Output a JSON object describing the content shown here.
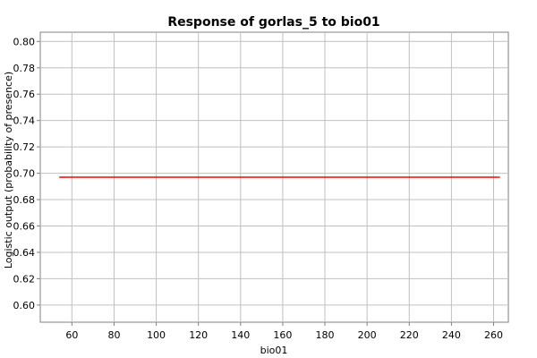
{
  "chart_data": {
    "type": "line",
    "title": "Response of gorlas_5 to bio01",
    "xlabel": "bio01",
    "ylabel": "Logistic output (probability of presence)",
    "xlim": [
      45,
      267
    ],
    "ylim": [
      0.587,
      0.807
    ],
    "x_ticks": [
      60,
      80,
      100,
      120,
      140,
      160,
      180,
      200,
      220,
      240,
      260
    ],
    "y_ticks": [
      0.6,
      0.62,
      0.64,
      0.66,
      0.68,
      0.7,
      0.72,
      0.74,
      0.76,
      0.78,
      0.8
    ],
    "grid": true,
    "series": [
      {
        "color": "#ff0000",
        "x": [
          54,
          263
        ],
        "y": [
          0.697,
          0.697
        ]
      }
    ]
  }
}
